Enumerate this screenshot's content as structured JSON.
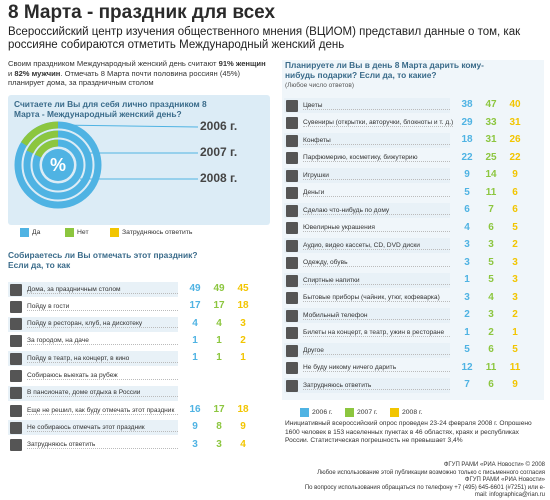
{
  "header": {
    "title": "8 Марта - праздник для всех",
    "subtitle": "Всероссийский центр изучения общественного мнения (ВЦИОМ) представил данные о том, как россияне собираются отметить Международный женский день"
  },
  "intro": [
    "Своим праздником Международный женский день считают ",
    "91% женщин",
    " и ",
    "82% мужчин",
    ". Отмечать 8 Марта почти половина россиян (45%) планирует дома, за праздничным столом"
  ],
  "year_colors": [
    "#4fb3e3",
    "#8cc63f",
    "#f2c500"
  ],
  "holiday": {
    "question": "Считаете ли Вы для себя лично праздником 8 Марта - Международный женский день?",
    "center": "%",
    "years": [
      "2006 г.",
      "2007 г.",
      "2008 г."
    ],
    "legend": [
      "Да",
      "Нет",
      "Затрудняюсь ответить"
    ]
  },
  "celebrate": {
    "question": "Собираетесь ли Вы отмечать этот праздник? Если да, то как",
    "rows": [
      {
        "label": "Дома, за праздничным столом",
        "values": [
          49,
          49,
          45
        ]
      },
      {
        "label": "Пойду в гости",
        "values": [
          17,
          17,
          18
        ]
      },
      {
        "label": "Пойду в ресторан, клуб, на дискотеку",
        "values": [
          4,
          4,
          3
        ]
      },
      {
        "label": "За городом, на даче",
        "values": [
          1,
          1,
          2
        ]
      },
      {
        "label": "Пойду в театр, на концерт, в кино",
        "values": [
          1,
          1,
          1
        ]
      },
      {
        "label": "Собираюсь выехать за рубеж"
      },
      {
        "label": "В пансионате, доме отдыха в России"
      },
      {
        "label": "Еще не решил, как буду отмечать этот праздник",
        "values": [
          16,
          17,
          18
        ]
      },
      {
        "label": "Не собираюсь отмечать этот праздник",
        "values": [
          9,
          8,
          9
        ]
      },
      {
        "label": "Затрудняюсь ответить",
        "values": [
          3,
          3,
          4
        ]
      }
    ]
  },
  "gifts": {
    "question": "Планируете ли Вы в день 8 Марта дарить кому-нибудь подарки? Если да, то какие?",
    "note": "(Любое число ответов)",
    "rows": [
      {
        "label": "Цветы",
        "values": [
          38,
          47,
          40
        ]
      },
      {
        "label": "Сувениры (открытки, авторучки, блокноты и т. д.)",
        "values": [
          29,
          33,
          31
        ]
      },
      {
        "label": "Конфеты",
        "values": [
          18,
          31,
          26
        ]
      },
      {
        "label": "Парфюмерию, косметику, бижутерию",
        "values": [
          22,
          25,
          22
        ]
      },
      {
        "label": "Игрушки",
        "values": [
          9,
          14,
          9
        ]
      },
      {
        "label": "Деньги",
        "values": [
          5,
          11,
          6
        ]
      },
      {
        "label": "Сделаю что-нибудь по дому",
        "values": [
          6,
          7,
          6
        ]
      },
      {
        "label": "Ювелирные украшения",
        "values": [
          4,
          6,
          5
        ]
      },
      {
        "label": "Аудио, видео кассеты, CD, DVD диски",
        "values": [
          3,
          3,
          2
        ]
      },
      {
        "label": "Одежду, обувь",
        "values": [
          3,
          5,
          3
        ]
      },
      {
        "label": "Спиртные напитки",
        "values": [
          1,
          5,
          3
        ]
      },
      {
        "label": "Бытовые приборы (чайник, утюг, кофеварка)",
        "values": [
          3,
          4,
          3
        ]
      },
      {
        "label": "Мобильный телефон",
        "values": [
          2,
          3,
          2
        ]
      },
      {
        "label": "Билеты на концерт, в театр, ужин в ресторане",
        "values": [
          1,
          2,
          1
        ]
      },
      {
        "label": "Другое",
        "values": [
          5,
          6,
          5
        ]
      },
      {
        "label": "Не буду никому ничего дарить",
        "values": [
          12,
          11,
          11
        ]
      },
      {
        "label": "Затрудняюсь ответить",
        "values": [
          7,
          6,
          9
        ]
      }
    ],
    "legend": [
      "2006 г.",
      "2007 г.",
      "2008 г."
    ]
  },
  "footnote": "Инициативный всероссийский опрос проведен 23-24 февраля 2008 г. Опрошено 1600 человек в 153 населенных пунктах в 46 областях, краях и республиках России. Статистическая погрешность не превышает 3,4%",
  "credits": [
    "ФГУП РАМИ «РИА Новости» © 2008",
    "Любое использование этой публикации возможно только с письменного согласия ФГУП РАМИ «РИА Новости»",
    "По вопросу использования обращаться по телефону +7 (495) 645-6601 (#7251) или e-mail: infographica@rian.ru"
  ]
}
